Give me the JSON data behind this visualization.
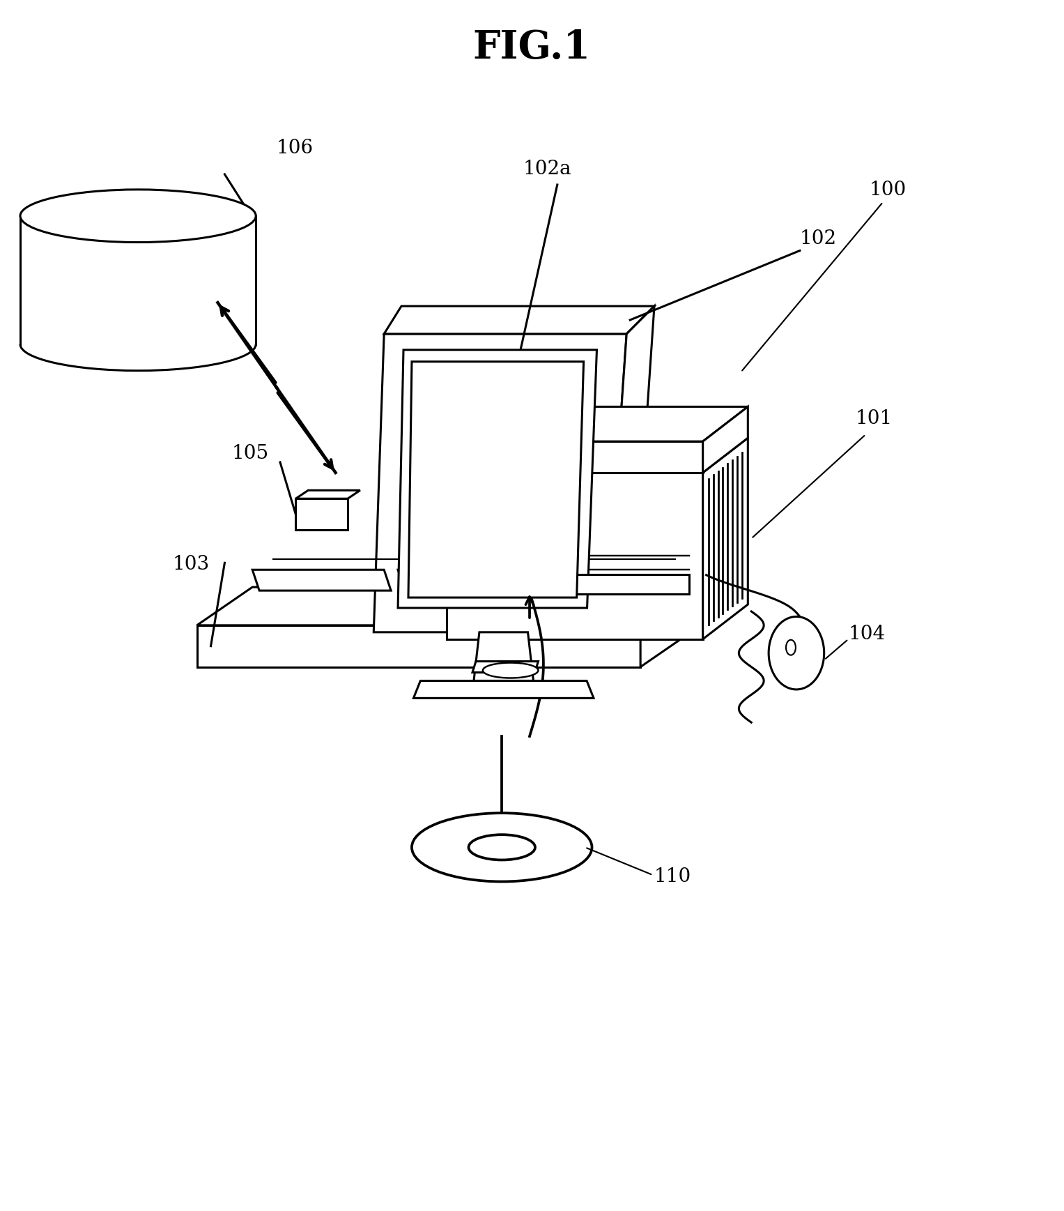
{
  "title": "FIG.1",
  "bg": "#ffffff",
  "lc": "#000000",
  "lw": 2.2,
  "title_fs": 40,
  "label_fs": 20
}
